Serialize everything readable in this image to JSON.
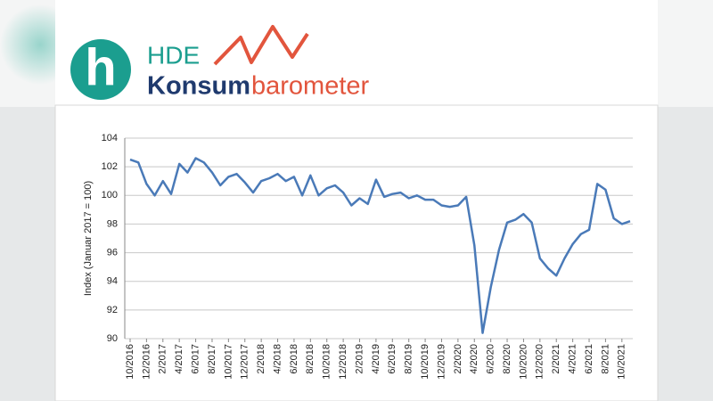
{
  "logo": {
    "mark": "h",
    "brand": "HDE",
    "name_part1": "Konsum",
    "name_part2": "barometer"
  },
  "chart_data": {
    "type": "line",
    "y_label": "Index (Januar 2017 = 100)",
    "categories": [
      "10/2016",
      null,
      "12/2016",
      null,
      "2/2017",
      null,
      "4/2017",
      null,
      "6/2017",
      null,
      "8/2017",
      null,
      "10/2017",
      null,
      "12/2017",
      null,
      "2/2018",
      null,
      "4/2018",
      null,
      "6/2018",
      null,
      "8/2018",
      null,
      "10/2018",
      null,
      "12/2018",
      null,
      "2/2019",
      null,
      "4/2019",
      null,
      "6/2019",
      null,
      "8/2019",
      null,
      "10/2019",
      null,
      "12/2019",
      null,
      "2/2020",
      null,
      "4/2020",
      null,
      "6/2020",
      null,
      "8/2020",
      null,
      "10/2020",
      null,
      "12/2020",
      null,
      "2/2021",
      null,
      "4/2021",
      null,
      "6/2021",
      null,
      "8/2021",
      null,
      "10/2021",
      null
    ],
    "series": [
      {
        "color": "#4a7ab8",
        "values": [
          102.5,
          102.3,
          100.8,
          100.0,
          101.0,
          100.1,
          102.2,
          101.6,
          102.6,
          102.3,
          101.6,
          100.7,
          101.3,
          101.5,
          100.9,
          100.2,
          101.0,
          101.2,
          101.5,
          101.0,
          101.3,
          100.0,
          101.4,
          100.0,
          100.5,
          100.7,
          100.2,
          99.3,
          99.8,
          99.4,
          101.1,
          99.9,
          100.1,
          100.2,
          99.8,
          100.0,
          99.7,
          99.7,
          99.3,
          99.2,
          99.3,
          99.9,
          96.5,
          90.4,
          93.6,
          96.2,
          98.1,
          98.3,
          98.7,
          98.1,
          95.6,
          94.9,
          94.4,
          95.6,
          96.6,
          97.3,
          97.6,
          100.8,
          100.4,
          98.4,
          98.0,
          98.2
        ]
      }
    ],
    "ylim": [
      90,
      104
    ],
    "yticks": [
      90,
      92,
      94,
      96,
      98,
      100,
      102,
      104
    ],
    "grid": true
  }
}
